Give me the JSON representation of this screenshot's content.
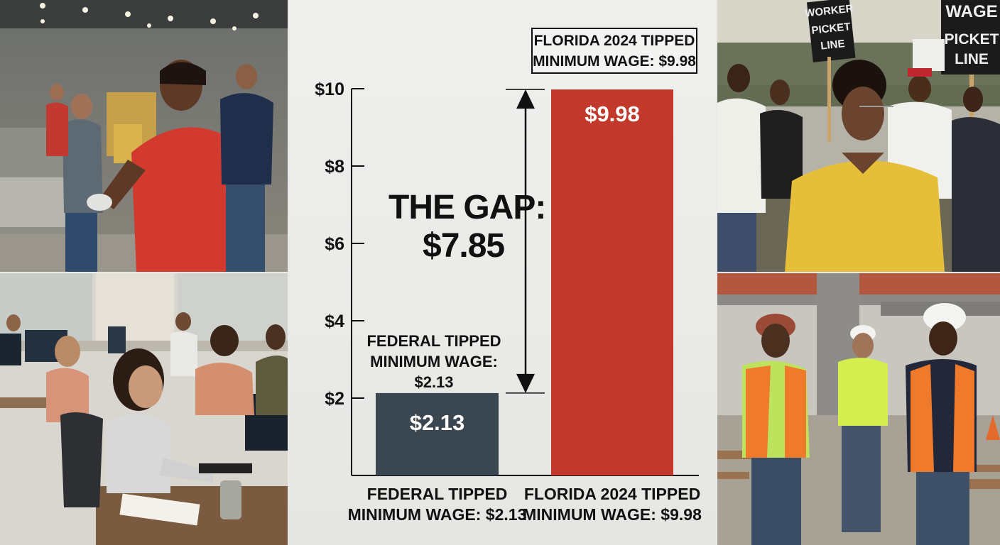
{
  "chart_data": {
    "type": "bar",
    "categories": [
      "FEDERAL TIPPED\nMINIMUM WAGE: $2.13",
      "FLORIDA 2024 TIPPED\nMINIMUM WAGE: $9.98"
    ],
    "values": [
      2.13,
      9.98
    ],
    "value_labels": [
      "$2.13",
      "$9.98"
    ],
    "bar_colors": [
      "#3a4650",
      "#c2382a"
    ],
    "ylim": [
      0,
      10
    ],
    "yticks": [
      2,
      4,
      6,
      8,
      10
    ],
    "ytick_labels": [
      "$2",
      "$4",
      "$6",
      "$8",
      "$10"
    ],
    "grid": false,
    "annotations": {
      "gap_title": "THE GAP:",
      "gap_value": "$7.85",
      "federal_callout": [
        "FEDERAL TIPPED",
        "MINIMUM WAGE:",
        "$2.13"
      ],
      "florida_callout": [
        "FLORIDA 2024 TIPPED",
        "MINIMUM WAGE: $9.98"
      ]
    }
  },
  "photos": {
    "factory": "factory-workers-photo",
    "office": "office-workers-photo",
    "protest": "protest-picket-photo",
    "construction": "construction-workers-photo"
  },
  "protest_signs": {
    "left_sign": [
      "WORKER",
      "PICKET",
      "LINE"
    ],
    "right_sign": [
      "WAGE",
      "PICKET",
      "LINE"
    ]
  }
}
